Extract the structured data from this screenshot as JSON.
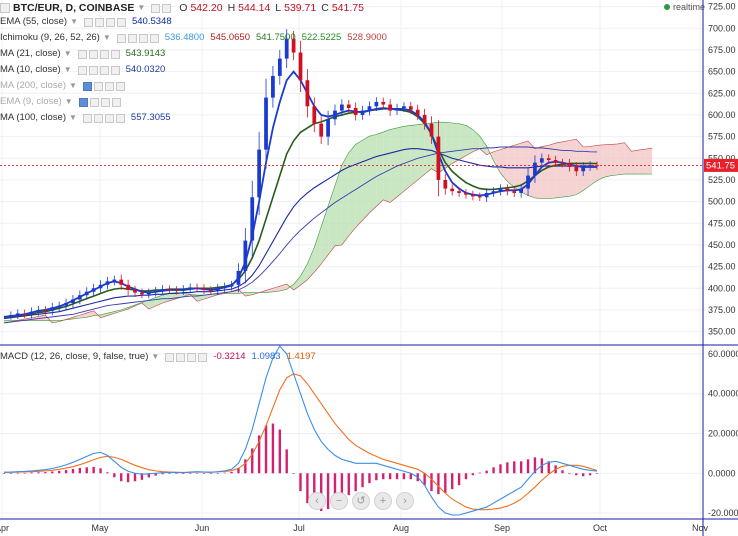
{
  "header": {
    "symbol": "BTC/EUR, D, COINBASE",
    "ohlc": [
      {
        "label": "O",
        "value": "542.20"
      },
      {
        "label": "H",
        "value": "544.14"
      },
      {
        "label": "L",
        "value": "539.71"
      },
      {
        "label": "C",
        "value": "541.75"
      }
    ],
    "realtime": "realtime"
  },
  "legend": [
    {
      "label": "EMA (55, close)",
      "values": [
        {
          "text": "540.5348",
          "color": "#0a2aa0"
        }
      ],
      "dim": false
    },
    {
      "label": "Ichimoku (9, 26, 52, 26)",
      "values": [
        {
          "text": "536.4800",
          "color": "#3a9ae0"
        },
        {
          "text": "545.0650",
          "color": "#b02020"
        },
        {
          "text": "541.7500",
          "color": "#2a7a2a"
        },
        {
          "text": "522.5225",
          "color": "#2a8a2a"
        },
        {
          "text": "528.9000",
          "color": "#c04040"
        }
      ],
      "dim": false
    },
    {
      "label": "MA (21, close)",
      "values": [
        {
          "text": "543.9143",
          "color": "#2a6a1a"
        }
      ],
      "dim": false
    },
    {
      "label": "MA (10, close)",
      "values": [
        {
          "text": "540.0320",
          "color": "#1a3aa0"
        }
      ],
      "dim": false
    },
    {
      "label": "MA (200, close)",
      "values": [],
      "dim": true
    },
    {
      "label": "EMA (9, close)",
      "values": [],
      "dim": true
    },
    {
      "label": "MA (100, close)",
      "values": [
        {
          "text": "557.3055",
          "color": "#1a3aa0"
        }
      ],
      "dim": false
    }
  ],
  "macd": {
    "label": "MACD (12, 26, close, 9, false, true)",
    "values": [
      {
        "text": "-0.3214",
        "color": "#c01060"
      },
      {
        "text": "1.0983",
        "color": "#2a6ae0"
      },
      {
        "text": "1.4197",
        "color": "#e06010"
      }
    ]
  },
  "colors": {
    "up": "#1a3ad0",
    "down": "#d01020",
    "cloud_green": "#b8dfb0",
    "cloud_red": "#f2c4c4",
    "macd_line": "#3a8ee8",
    "signal_line": "#f07020",
    "hist": "#d42070",
    "price_tag": "#e8202a",
    "axis_border": "#1a1aa0"
  },
  "price_tag": "541.75",
  "zoom_controls": [
    "zoom-out",
    "reset",
    "zoom-reset",
    "zoom-in",
    "scroll-right"
  ],
  "chart_data": {
    "type": "line",
    "x_ticks": [
      "Apr",
      "May",
      "Jun",
      "Jul",
      "Aug",
      "Sep",
      "Oct",
      "Nov"
    ],
    "price_axis_ticks": [
      350,
      375,
      400,
      425,
      450,
      475,
      500,
      525,
      550,
      575,
      600,
      625,
      650,
      675,
      700,
      725
    ],
    "price_range": [
      338,
      728
    ],
    "macd_axis_ticks": [
      "-20.0000",
      "0.0000",
      "20.0000",
      "40.0000",
      "60.0000"
    ],
    "macd_range": [
      -22,
      63
    ],
    "last_price": 541.75,
    "close_series": [
      368,
      369,
      371,
      370,
      373,
      375,
      374,
      378,
      380,
      383,
      387,
      392,
      396,
      400,
      404,
      408,
      410,
      404,
      398,
      395,
      393,
      395,
      397,
      399,
      398,
      397,
      399,
      401,
      400,
      398,
      397,
      400,
      402,
      404,
      420,
      455,
      505,
      560,
      620,
      645,
      665,
      688,
      672,
      640,
      610,
      590,
      575,
      595,
      605,
      612,
      608,
      600,
      605,
      610,
      615,
      612,
      605,
      608,
      610,
      606,
      600,
      590,
      575,
      525,
      515,
      512,
      510,
      508,
      506,
      505,
      510,
      512,
      515,
      512,
      510,
      515,
      530,
      545,
      550,
      548,
      545,
      544,
      540,
      535,
      540,
      542,
      541
    ],
    "ema55_series": [
      365,
      366,
      367,
      368,
      369,
      370,
      371,
      372,
      373,
      375,
      377,
      379,
      381,
      383,
      385,
      387,
      389,
      390,
      391,
      391,
      392,
      392,
      393,
      393,
      394,
      394,
      395,
      395,
      396,
      396,
      396,
      397,
      398,
      399,
      402,
      407,
      415,
      426,
      440,
      454,
      468,
      482,
      494,
      503,
      510,
      516,
      521,
      526,
      531,
      536,
      540,
      543,
      546,
      549,
      552,
      554,
      556,
      558,
      560,
      561,
      561,
      560,
      559,
      556,
      553,
      550,
      548,
      546,
      544,
      542,
      541,
      540,
      540,
      539,
      539,
      539,
      539,
      540,
      541,
      541,
      541,
      541,
      541,
      541,
      541,
      541,
      540.5
    ],
    "ma100_series": [
      360,
      361,
      362,
      363,
      364,
      365,
      366,
      367,
      368,
      369,
      370,
      372,
      374,
      376,
      378,
      380,
      381,
      382,
      383,
      384,
      385,
      386,
      387,
      388,
      388,
      389,
      390,
      391,
      391,
      392,
      393,
      394,
      395,
      396,
      398,
      402,
      407,
      414,
      422,
      431,
      440,
      450,
      459,
      467,
      474,
      481,
      487,
      493,
      499,
      504,
      509,
      514,
      519,
      524,
      529,
      533,
      537,
      541,
      544,
      547,
      550,
      552,
      554,
      556,
      557,
      558,
      559,
      560,
      561,
      561,
      562,
      562,
      563,
      563,
      563,
      563,
      563,
      562,
      562,
      561,
      560,
      559,
      559,
      558,
      558,
      557.5,
      557.3
    ],
    "ma21_series": [
      366,
      367,
      368,
      369,
      370,
      372,
      373,
      375,
      377,
      379,
      382,
      385,
      388,
      391,
      394,
      397,
      399,
      400,
      399,
      398,
      397,
      397,
      398,
      398,
      399,
      399,
      399,
      400,
      400,
      400,
      400,
      401,
      402,
      404,
      410,
      420,
      435,
      455,
      480,
      505,
      530,
      555,
      570,
      580,
      585,
      590,
      592,
      595,
      598,
      600,
      602,
      603,
      604,
      605,
      606,
      607,
      607,
      606,
      605,
      603,
      598,
      590,
      578,
      560,
      545,
      535,
      528,
      522,
      518,
      515,
      514,
      514,
      515,
      516,
      517,
      519,
      524,
      530,
      536,
      540,
      542,
      543,
      544,
      544,
      544,
      544,
      543.9
    ],
    "ma10_series": [
      367,
      368,
      369,
      370,
      372,
      374,
      375,
      377,
      379,
      382,
      386,
      390,
      394,
      398,
      402,
      406,
      408,
      406,
      402,
      399,
      396,
      395,
      396,
      397,
      398,
      398,
      398,
      399,
      400,
      399,
      398,
      399,
      401,
      403,
      412,
      430,
      460,
      500,
      545,
      585,
      615,
      640,
      650,
      640,
      625,
      610,
      600,
      598,
      600,
      603,
      605,
      604,
      603,
      605,
      607,
      608,
      607,
      607,
      607,
      605,
      600,
      592,
      578,
      555,
      535,
      522,
      515,
      510,
      508,
      507,
      508,
      510,
      512,
      513,
      513,
      514,
      520,
      530,
      540,
      545,
      546,
      545,
      543,
      541,
      540,
      540,
      540
    ],
    "macd_series": [
      0.5,
      0.6,
      0.8,
      0.9,
      1.2,
      1.5,
      1.8,
      2.4,
      3.2,
      4.2,
      5.5,
      7,
      8.5,
      10,
      10.5,
      9,
      6,
      3,
      1,
      0,
      -0.5,
      -0.3,
      0,
      0.3,
      0.5,
      0.4,
      0.3,
      0.6,
      0.8,
      0.6,
      0.5,
      0.8,
      1.2,
      2,
      5,
      12,
      22,
      35,
      48,
      58,
      64,
      60,
      50,
      40,
      30,
      22,
      16,
      12,
      9,
      7,
      6,
      5,
      5,
      5,
      5,
      4,
      3,
      2,
      1,
      0,
      -2,
      -6,
      -12,
      -17,
      -20,
      -21,
      -21,
      -20,
      -19,
      -18,
      -17,
      -15,
      -13,
      -11,
      -9,
      -7,
      -3,
      1,
      4,
      5.5,
      6,
      5,
      4,
      3,
      2,
      1.5,
      1.1
    ],
    "signal_series": [
      0.5,
      0.5,
      0.6,
      0.7,
      0.8,
      1,
      1.2,
      1.5,
      2,
      2.6,
      3.3,
      4.3,
      5.5,
      6.8,
      8,
      8.5,
      8,
      7,
      5.5,
      4,
      2.8,
      1.8,
      1.2,
      0.8,
      0.6,
      0.5,
      0.4,
      0.5,
      0.6,
      0.6,
      0.6,
      0.7,
      0.9,
      1.3,
      2.5,
      5,
      9.5,
      16,
      24,
      33,
      42,
      48,
      50,
      49,
      45,
      40,
      35,
      30,
      25,
      21,
      17,
      14,
      12,
      10,
      8.5,
      7,
      6,
      5,
      4,
      3,
      2,
      0,
      -3,
      -6.5,
      -10,
      -13,
      -15,
      -17,
      -18,
      -18.3,
      -18.3,
      -18,
      -17.5,
      -16.5,
      -15,
      -13,
      -10,
      -7,
      -3.5,
      -0.5,
      2,
      3.5,
      4,
      4,
      3.5,
      2.5,
      1.4
    ],
    "macd_hist_series": [
      0,
      0.1,
      0.2,
      0.2,
      0.4,
      0.5,
      0.6,
      0.9,
      1.2,
      1.6,
      2.2,
      2.7,
      3,
      3.2,
      2.5,
      0.5,
      -2,
      -4,
      -4.5,
      -4,
      -3.3,
      -2.1,
      -1.2,
      -0.5,
      -0.1,
      -0.1,
      -0.1,
      0.1,
      0.2,
      0,
      -0.1,
      0.1,
      0.3,
      0.7,
      2.5,
      7,
      12.5,
      19,
      24,
      25,
      22,
      12,
      0,
      -9,
      -15,
      -18,
      -19,
      -18,
      -16,
      -14,
      -11,
      -9,
      -7,
      -5,
      -3.5,
      -3,
      -3,
      -3,
      -3,
      -3,
      -4,
      -6,
      -9,
      -10.5,
      -10,
      -8,
      -6,
      -3,
      -1,
      0.3,
      1.3,
      3,
      4.5,
      5.5,
      6,
      6,
      7,
      8,
      7.5,
      6,
      4,
      1.5,
      0,
      -1,
      -1.5,
      -1,
      -0.3
    ],
    "title": "BTC/EUR, D, COINBASE"
  }
}
